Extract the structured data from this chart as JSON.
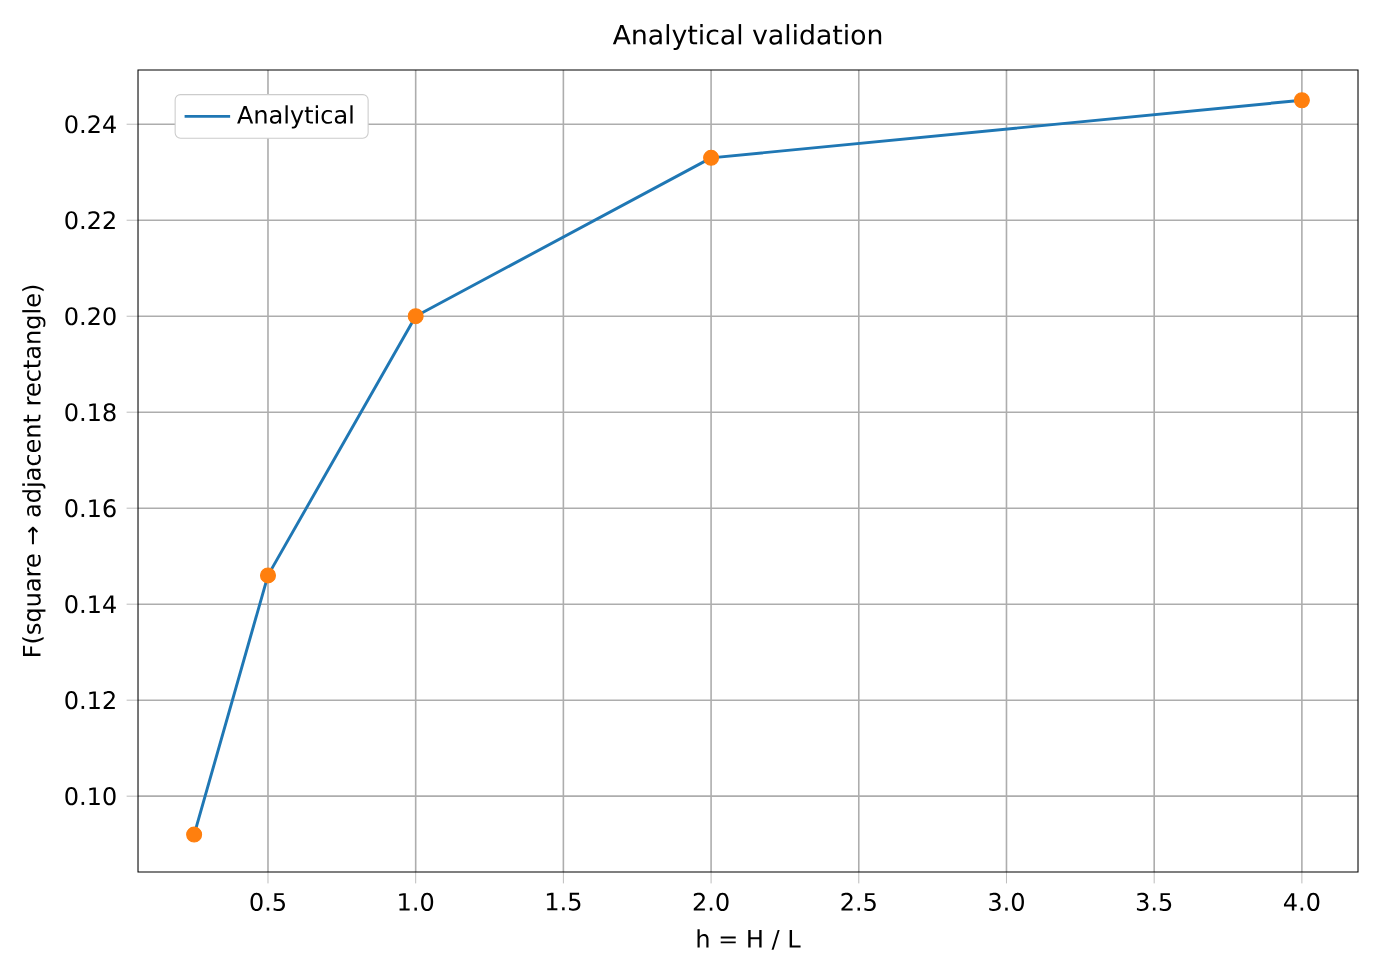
{
  "chart_data": {
    "type": "line",
    "title": "Analytical validation",
    "xlabel": "h = H / L",
    "ylabel": "F(square → adjacent rectangle)",
    "xlim": [
      0.06,
      4.19
    ],
    "ylim": [
      0.0842,
      0.2513
    ],
    "xticks": [
      {
        "value": 0.5,
        "label": "0.5"
      },
      {
        "value": 1,
        "label": "1.0"
      },
      {
        "value": 1.5,
        "label": "1.5"
      },
      {
        "value": 2,
        "label": "2.0"
      },
      {
        "value": 2.5,
        "label": "2.5"
      },
      {
        "value": 3,
        "label": "3.0"
      },
      {
        "value": 3.5,
        "label": "3.5"
      },
      {
        "value": 4,
        "label": "4.0"
      }
    ],
    "yticks": [
      {
        "value": 0.1,
        "label": "0.10"
      },
      {
        "value": 0.12,
        "label": "0.12"
      },
      {
        "value": 0.14,
        "label": "0.14"
      },
      {
        "value": 0.16,
        "label": "0.16"
      },
      {
        "value": 0.18,
        "label": "0.18"
      },
      {
        "value": 0.2,
        "label": "0.20"
      },
      {
        "value": 0.22,
        "label": "0.22"
      },
      {
        "value": 0.24,
        "label": "0.24"
      }
    ],
    "grid": true,
    "legend": "top left",
    "series": [
      {
        "name": "Analytical",
        "color": "#1f77b4",
        "line_style": "solid",
        "marker": "none",
        "x": [
          0.25,
          0.5,
          1,
          2,
          4
        ],
        "values": [
          0.092,
          0.146,
          0.2,
          0.233,
          0.245
        ]
      },
      {
        "type": "scatter",
        "color": "#ff7f0e",
        "marker": "circle",
        "x": [
          0.25,
          0.5,
          1,
          2,
          4
        ],
        "values": [
          0.092,
          0.146,
          0.2,
          0.233,
          0.245
        ]
      }
    ]
  }
}
